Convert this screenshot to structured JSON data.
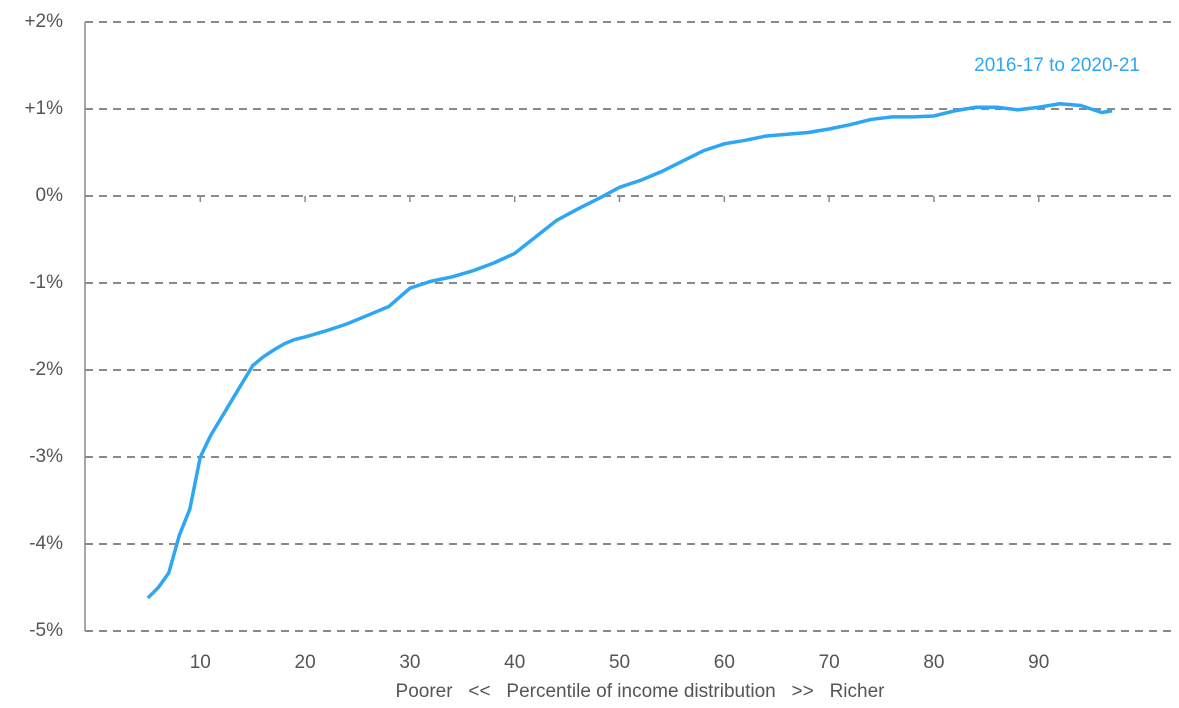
{
  "chart_data": {
    "type": "line",
    "x_label": "Poorer   <<   Percentile of income distribution   >>   Richer",
    "x": [
      5,
      6,
      7,
      8,
      9,
      10,
      11,
      12,
      13,
      14,
      15,
      16,
      17,
      18,
      19,
      20,
      22,
      24,
      26,
      28,
      30,
      32,
      34,
      36,
      38,
      40,
      42,
      44,
      46,
      48,
      50,
      52,
      54,
      56,
      58,
      60,
      62,
      64,
      66,
      68,
      70,
      72,
      74,
      76,
      78,
      80,
      82,
      84,
      86,
      88,
      90,
      92,
      94,
      96,
      97
    ],
    "series": [
      {
        "name": "2016-17 to 2020-21",
        "color": "#2ea6f3",
        "values": [
          -4.62,
          -4.5,
          -4.33,
          -3.9,
          -3.6,
          -3.0,
          -2.75,
          -2.55,
          -2.35,
          -2.15,
          -1.95,
          -1.85,
          -1.77,
          -1.7,
          -1.65,
          -1.62,
          -1.55,
          -1.47,
          -1.37,
          -1.27,
          -1.06,
          -0.98,
          -0.93,
          -0.86,
          -0.77,
          -0.66,
          -0.47,
          -0.28,
          -0.15,
          -0.03,
          0.1,
          0.18,
          0.28,
          0.4,
          0.52,
          0.6,
          0.64,
          0.69,
          0.71,
          0.73,
          0.77,
          0.82,
          0.88,
          0.91,
          0.91,
          0.92,
          0.98,
          1.02,
          1.02,
          0.99,
          1.02,
          1.06,
          1.04,
          0.96,
          0.98
        ]
      }
    ],
    "xlim": [
      -1,
      103
    ],
    "xticks": [
      10,
      20,
      30,
      40,
      50,
      60,
      70,
      80,
      90
    ],
    "ylim": [
      -5,
      2
    ],
    "yticks": [
      {
        "value": 2,
        "label": "+2%"
      },
      {
        "value": 1,
        "label": "+1%"
      },
      {
        "value": 0,
        "label": "0%"
      },
      {
        "value": -1,
        "label": "-1%"
      },
      {
        "value": -2,
        "label": "-2%"
      },
      {
        "value": -3,
        "label": "-3%"
      },
      {
        "value": -4,
        "label": "-4%"
      },
      {
        "value": -5,
        "label": "-5%"
      }
    ],
    "grid": true
  }
}
